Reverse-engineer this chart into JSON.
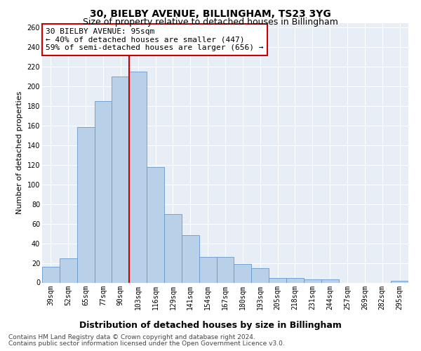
{
  "title": "30, BIELBY AVENUE, BILLINGHAM, TS23 3YG",
  "subtitle": "Size of property relative to detached houses in Billingham",
  "xlabel": "Distribution of detached houses by size in Billingham",
  "ylabel": "Number of detached properties",
  "categories": [
    "39sqm",
    "52sqm",
    "65sqm",
    "77sqm",
    "90sqm",
    "103sqm",
    "116sqm",
    "129sqm",
    "141sqm",
    "154sqm",
    "167sqm",
    "180sqm",
    "193sqm",
    "205sqm",
    "218sqm",
    "231sqm",
    "244sqm",
    "257sqm",
    "269sqm",
    "282sqm",
    "295sqm"
  ],
  "values": [
    16,
    25,
    159,
    185,
    210,
    215,
    118,
    70,
    48,
    26,
    26,
    19,
    15,
    5,
    5,
    3,
    3,
    0,
    0,
    0,
    2
  ],
  "bar_color": "#b8d0e8",
  "bar_edge_color": "#6699cc",
  "vline_color": "#cc0000",
  "annotation_text": "30 BIELBY AVENUE: 95sqm\n← 40% of detached houses are smaller (447)\n59% of semi-detached houses are larger (656) →",
  "annotation_box_facecolor": "white",
  "annotation_box_edgecolor": "#cc0000",
  "ylim": [
    0,
    265
  ],
  "yticks": [
    0,
    20,
    40,
    60,
    80,
    100,
    120,
    140,
    160,
    180,
    200,
    220,
    240,
    260
  ],
  "footer_line1": "Contains HM Land Registry data © Crown copyright and database right 2024.",
  "footer_line2": "Contains public sector information licensed under the Open Government Licence v3.0.",
  "plot_bg_color": "#e8eef5",
  "grid_color": "#ffffff",
  "title_fontsize": 10,
  "subtitle_fontsize": 9,
  "xlabel_fontsize": 9,
  "ylabel_fontsize": 8,
  "tick_fontsize": 7,
  "annotation_fontsize": 8,
  "footer_fontsize": 6.5
}
